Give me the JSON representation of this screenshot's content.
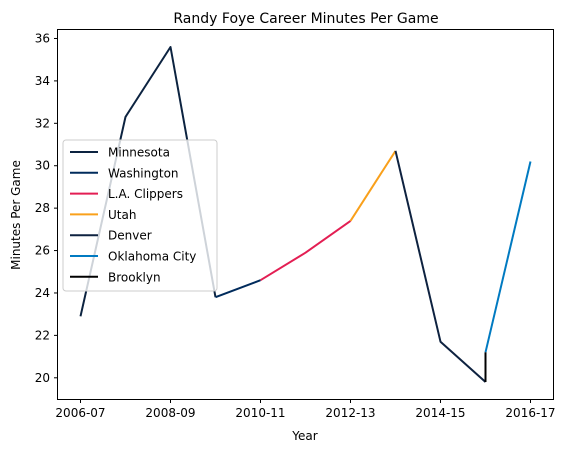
{
  "chart_data": {
    "type": "line",
    "title": "Randy Foye Career Minutes Per Game",
    "xlabel": "Year",
    "ylabel": "Minutes Per Game",
    "x_ticks": [
      "2006-07",
      "2008-09",
      "2010-11",
      "2012-13",
      "2014-15",
      "2016-17"
    ],
    "y_ticks": [
      20,
      22,
      24,
      26,
      28,
      30,
      32,
      34,
      36
    ],
    "xlim": [
      -0.5,
      10.5
    ],
    "ylim": [
      19.0,
      36.4
    ],
    "grid": false,
    "legend_position": "center-left",
    "series": [
      {
        "name": "Minnesota",
        "color": "#0c2340",
        "x": [
          0,
          1,
          2,
          3
        ],
        "y": [
          22.9,
          32.3,
          35.6,
          23.8
        ]
      },
      {
        "name": "Washington",
        "color": "#002b5c",
        "x": [
          3,
          4
        ],
        "y": [
          23.8,
          24.6
        ]
      },
      {
        "name": "L.A. Clippers",
        "color": "#e31e53",
        "x": [
          4,
          5,
          6
        ],
        "y": [
          24.6,
          25.9,
          27.4
        ]
      },
      {
        "name": "Utah",
        "color": "#f9a01b",
        "x": [
          6,
          7
        ],
        "y": [
          27.4,
          30.7
        ]
      },
      {
        "name": "Denver",
        "color": "#0e2240",
        "x": [
          7,
          8,
          9
        ],
        "y": [
          30.7,
          21.7,
          19.8
        ]
      },
      {
        "name": "Oklahoma City",
        "color": "#007ac1",
        "x": [
          9,
          10
        ],
        "y": [
          21.2,
          30.2
        ]
      },
      {
        "name": "Brooklyn",
        "color": "#000000",
        "x": [
          9,
          9
        ],
        "y": [
          19.8,
          21.2
        ]
      }
    ]
  }
}
